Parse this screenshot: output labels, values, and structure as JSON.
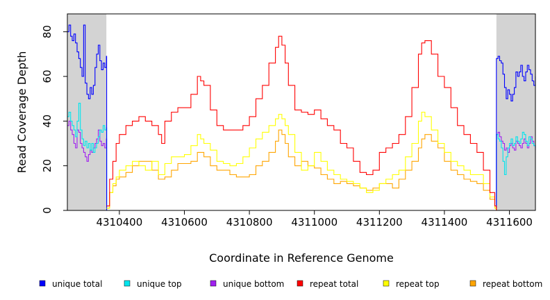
{
  "chart_data": {
    "type": "line",
    "title": "",
    "xlabel": "Coordinate in Reference Genome",
    "ylabel": "Read Coverage Depth",
    "xlim": [
      4310240,
      4311680
    ],
    "ylim": [
      0,
      88
    ],
    "x_ticks": [
      4310400,
      4310600,
      4310800,
      4311000,
      4311200,
      4311400,
      4311600
    ],
    "x_tick_labels": [
      "4310400",
      "4310600",
      "4310800",
      "4311000",
      "4311200",
      "4311400",
      "4311600"
    ],
    "y_ticks": [
      0,
      20,
      40,
      60,
      80
    ],
    "y_tick_labels": [
      "0",
      "20",
      "40",
      "60",
      "80"
    ],
    "grid": false,
    "legend_position": "bottom",
    "shaded_regions": [
      {
        "x0": 4310240,
        "x1": 4310360,
        "color": "#d3d3d3"
      },
      {
        "x0": 4311560,
        "x1": 4311680,
        "color": "#d3d3d3"
      }
    ],
    "series": [
      {
        "name": "unique total",
        "color": "#0000ff",
        "x": [
          4310240,
          4310245,
          4310250,
          4310255,
          4310260,
          4310265,
          4310270,
          4310275,
          4310280,
          4310285,
          4310290,
          4310295,
          4310300,
          4310305,
          4310310,
          4310315,
          4310320,
          4310325,
          4310330,
          4310335,
          4310340,
          4310345,
          4310350,
          4310355,
          4310360,
          4310361,
          4311559,
          4311560,
          4311565,
          4311570,
          4311575,
          4311580,
          4311585,
          4311590,
          4311595,
          4311600,
          4311605,
          4311610,
          4311615,
          4311620,
          4311625,
          4311630,
          4311635,
          4311640,
          4311645,
          4311650,
          4311655,
          4311660,
          4311665,
          4311670,
          4311675,
          4311680
        ],
        "y": [
          80,
          83,
          78,
          76,
          79,
          75,
          71,
          68,
          64,
          60,
          83,
          57,
          52,
          50,
          55,
          52,
          56,
          64,
          70,
          74,
          67,
          63,
          66,
          64,
          69,
          0,
          0,
          68,
          69,
          67,
          66,
          61,
          55,
          50,
          54,
          52,
          49,
          52,
          55,
          62,
          60,
          62,
          65,
          60,
          58,
          62,
          65,
          63,
          61,
          58,
          56,
          60
        ]
      },
      {
        "name": "unique top",
        "color": "#00e5ee",
        "x": [
          4310240,
          4310245,
          4310250,
          4310255,
          4310260,
          4310265,
          4310270,
          4310275,
          4310280,
          4310285,
          4310290,
          4310295,
          4310300,
          4310305,
          4310310,
          4310315,
          4310320,
          4310325,
          4310330,
          4310335,
          4310340,
          4310345,
          4310350,
          4310355,
          4310360,
          4310361,
          4311559,
          4311560,
          4311565,
          4311570,
          4311575,
          4311580,
          4311585,
          4311590,
          4311595,
          4311600,
          4311605,
          4311610,
          4311615,
          4311620,
          4311625,
          4311630,
          4311635,
          4311640,
          4311645,
          4311650,
          4311655,
          4311660,
          4311665,
          4311670,
          4311675,
          4311680
        ],
        "y": [
          42,
          44,
          40,
          38,
          36,
          33,
          40,
          48,
          36,
          32,
          29,
          31,
          28,
          30,
          27,
          30,
          26,
          28,
          30,
          33,
          36,
          35,
          38,
          36,
          37,
          0,
          0,
          34,
          32,
          31,
          28,
          22,
          16,
          24,
          28,
          30,
          32,
          29,
          30,
          33,
          31,
          30,
          32,
          35,
          34,
          31,
          29,
          33,
          32,
          30,
          29,
          28
        ]
      },
      {
        "name": "unique bottom",
        "color": "#a020f0",
        "x": [
          4310240,
          4310245,
          4310250,
          4310255,
          4310260,
          4310265,
          4310270,
          4310275,
          4310280,
          4310285,
          4310290,
          4310295,
          4310300,
          4310305,
          4310310,
          4310315,
          4310320,
          4310325,
          4310330,
          4310335,
          4310340,
          4310345,
          4310350,
          4310355,
          4310360,
          4310361,
          4311559,
          4311560,
          4311565,
          4311570,
          4311575,
          4311580,
          4311585,
          4311590,
          4311595,
          4311600,
          4311605,
          4311610,
          4311615,
          4311620,
          4311625,
          4311630,
          4311635,
          4311640,
          4311645,
          4311650,
          4311655,
          4311660,
          4311665,
          4311670,
          4311675,
          4311680
        ],
        "y": [
          38,
          40,
          36,
          34,
          30,
          28,
          36,
          35,
          30,
          28,
          26,
          24,
          22,
          25,
          27,
          26,
          28,
          30,
          32,
          36,
          31,
          29,
          30,
          28,
          32,
          0,
          0,
          34,
          35,
          33,
          31,
          30,
          27,
          28,
          26,
          29,
          30,
          28,
          27,
          31,
          30,
          29,
          28,
          30,
          32,
          30,
          28,
          30,
          33,
          31,
          29,
          27
        ]
      },
      {
        "name": "repeat total",
        "color": "#ff0000",
        "x": [
          4310361,
          4310370,
          4310380,
          4310390,
          4310400,
          4310420,
          4310440,
          4310460,
          4310480,
          4310500,
          4310520,
          4310530,
          4310540,
          4310560,
          4310580,
          4310600,
          4310620,
          4310640,
          4310650,
          4310660,
          4310680,
          4310700,
          4310720,
          4310740,
          4310760,
          4310780,
          4310800,
          4310820,
          4310840,
          4310860,
          4310880,
          4310890,
          4310900,
          4310910,
          4310920,
          4310940,
          4310960,
          4310980,
          4311000,
          4311020,
          4311040,
          4311060,
          4311080,
          4311100,
          4311120,
          4311140,
          4311160,
          4311180,
          4311200,
          4311220,
          4311240,
          4311260,
          4311280,
          4311300,
          4311320,
          4311330,
          4311340,
          4311360,
          4311380,
          4311400,
          4311420,
          4311440,
          4311460,
          4311480,
          4311500,
          4311520,
          4311540,
          4311555,
          4311560
        ],
        "y": [
          2,
          14,
          22,
          30,
          34,
          38,
          40,
          42,
          40,
          38,
          34,
          30,
          40,
          44,
          46,
          46,
          52,
          60,
          58,
          56,
          45,
          38,
          36,
          36,
          36,
          38,
          42,
          50,
          56,
          66,
          73,
          78,
          74,
          66,
          56,
          45,
          44,
          43,
          45,
          41,
          38,
          36,
          30,
          28,
          22,
          17,
          16,
          18,
          26,
          28,
          30,
          34,
          42,
          55,
          70,
          75,
          76,
          70,
          60,
          55,
          46,
          38,
          34,
          30,
          26,
          18,
          8,
          2,
          0
        ]
      },
      {
        "name": "repeat top",
        "color": "#ffff00",
        "x": [
          4310361,
          4310370,
          4310380,
          4310390,
          4310400,
          4310420,
          4310440,
          4310460,
          4310480,
          4310500,
          4310520,
          4310540,
          4310560,
          4310580,
          4310600,
          4310620,
          4310640,
          4310650,
          4310660,
          4310680,
          4310700,
          4310720,
          4310740,
          4310760,
          4310780,
          4310800,
          4310820,
          4310840,
          4310860,
          4310880,
          4310890,
          4310900,
          4310910,
          4310920,
          4310940,
          4310960,
          4310980,
          4311000,
          4311020,
          4311040,
          4311060,
          4311080,
          4311100,
          4311120,
          4311140,
          4311160,
          4311180,
          4311200,
          4311220,
          4311240,
          4311260,
          4311280,
          4311300,
          4311320,
          4311330,
          4311340,
          4311360,
          4311380,
          4311400,
          4311420,
          4311440,
          4311460,
          4311480,
          4311500,
          4311520,
          4311540,
          4311555,
          4311560
        ],
        "y": [
          1,
          8,
          12,
          15,
          18,
          20,
          22,
          20,
          18,
          22,
          16,
          21,
          24,
          24,
          25,
          29,
          34,
          32,
          30,
          27,
          22,
          21,
          20,
          21,
          24,
          28,
          32,
          35,
          38,
          41,
          43,
          41,
          38,
          34,
          26,
          18,
          20,
          26,
          22,
          18,
          16,
          14,
          13,
          12,
          10,
          8,
          9,
          12,
          14,
          16,
          18,
          24,
          30,
          40,
          44,
          42,
          36,
          30,
          26,
          22,
          20,
          18,
          16,
          16,
          12,
          6,
          1,
          0
        ]
      },
      {
        "name": "repeat bottom",
        "color": "#ffa500",
        "x": [
          4310361,
          4310370,
          4310380,
          4310390,
          4310400,
          4310420,
          4310440,
          4310460,
          4310480,
          4310500,
          4310520,
          4310540,
          4310560,
          4310580,
          4310600,
          4310620,
          4310640,
          4310650,
          4310660,
          4310680,
          4310700,
          4310720,
          4310740,
          4310760,
          4310780,
          4310800,
          4310820,
          4310840,
          4310860,
          4310880,
          4310890,
          4310900,
          4310910,
          4310920,
          4310940,
          4310960,
          4310980,
          4311000,
          4311020,
          4311040,
          4311060,
          4311080,
          4311100,
          4311120,
          4311140,
          4311160,
          4311180,
          4311200,
          4311220,
          4311240,
          4311260,
          4311280,
          4311300,
          4311320,
          4311330,
          4311340,
          4311360,
          4311380,
          4311400,
          4311420,
          4311440,
          4311460,
          4311480,
          4311500,
          4311520,
          4311540,
          4311555,
          4311560
        ],
        "y": [
          1,
          8,
          11,
          14,
          15,
          17,
          20,
          22,
          22,
          18,
          14,
          15,
          18,
          21,
          21,
          22,
          26,
          26,
          24,
          20,
          18,
          18,
          16,
          15,
          15,
          16,
          20,
          22,
          26,
          31,
          36,
          34,
          30,
          24,
          20,
          22,
          20,
          19,
          16,
          14,
          12,
          13,
          12,
          11,
          10,
          9,
          10,
          12,
          12,
          10,
          14,
          18,
          22,
          28,
          32,
          34,
          31,
          28,
          22,
          18,
          16,
          14,
          13,
          12,
          9,
          5,
          1,
          0
        ]
      }
    ]
  }
}
